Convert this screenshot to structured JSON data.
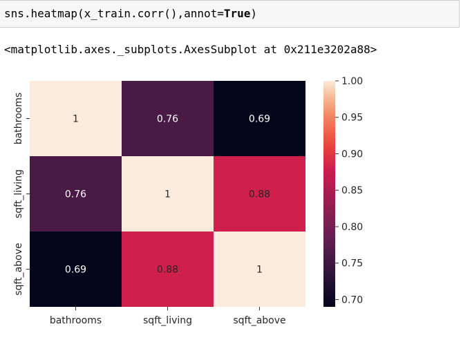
{
  "cell": {
    "code_prefix": "sns.heatmap(x_train.corr(),annot=",
    "code_keyword": "True",
    "code_suffix": ")",
    "output_text": "<matplotlib.axes._subplots.AxesSubplot at 0x211e3202a88>"
  },
  "chart_data": {
    "type": "heatmap",
    "title": "",
    "row_labels": [
      "bathrooms",
      "sqft_living",
      "sqft_above"
    ],
    "col_labels": [
      "bathrooms",
      "sqft_living",
      "sqft_above"
    ],
    "values": [
      [
        1,
        0.76,
        0.69
      ],
      [
        0.76,
        1,
        0.88
      ],
      [
        0.69,
        0.88,
        1
      ]
    ],
    "annot": [
      [
        "1",
        "0.76",
        "0.69"
      ],
      [
        "0.76",
        "1",
        "0.88"
      ],
      [
        "0.69",
        "0.88",
        "1"
      ]
    ],
    "colorbar": {
      "range": [
        0.69,
        1.0
      ],
      "ticks": [
        0.7,
        0.75,
        0.8,
        0.85,
        0.9,
        0.95,
        1.0
      ],
      "tick_labels": [
        "0.70",
        "0.75",
        "0.80",
        "0.85",
        "0.90",
        "0.95",
        "1.00"
      ],
      "colormap": "rocket"
    }
  }
}
